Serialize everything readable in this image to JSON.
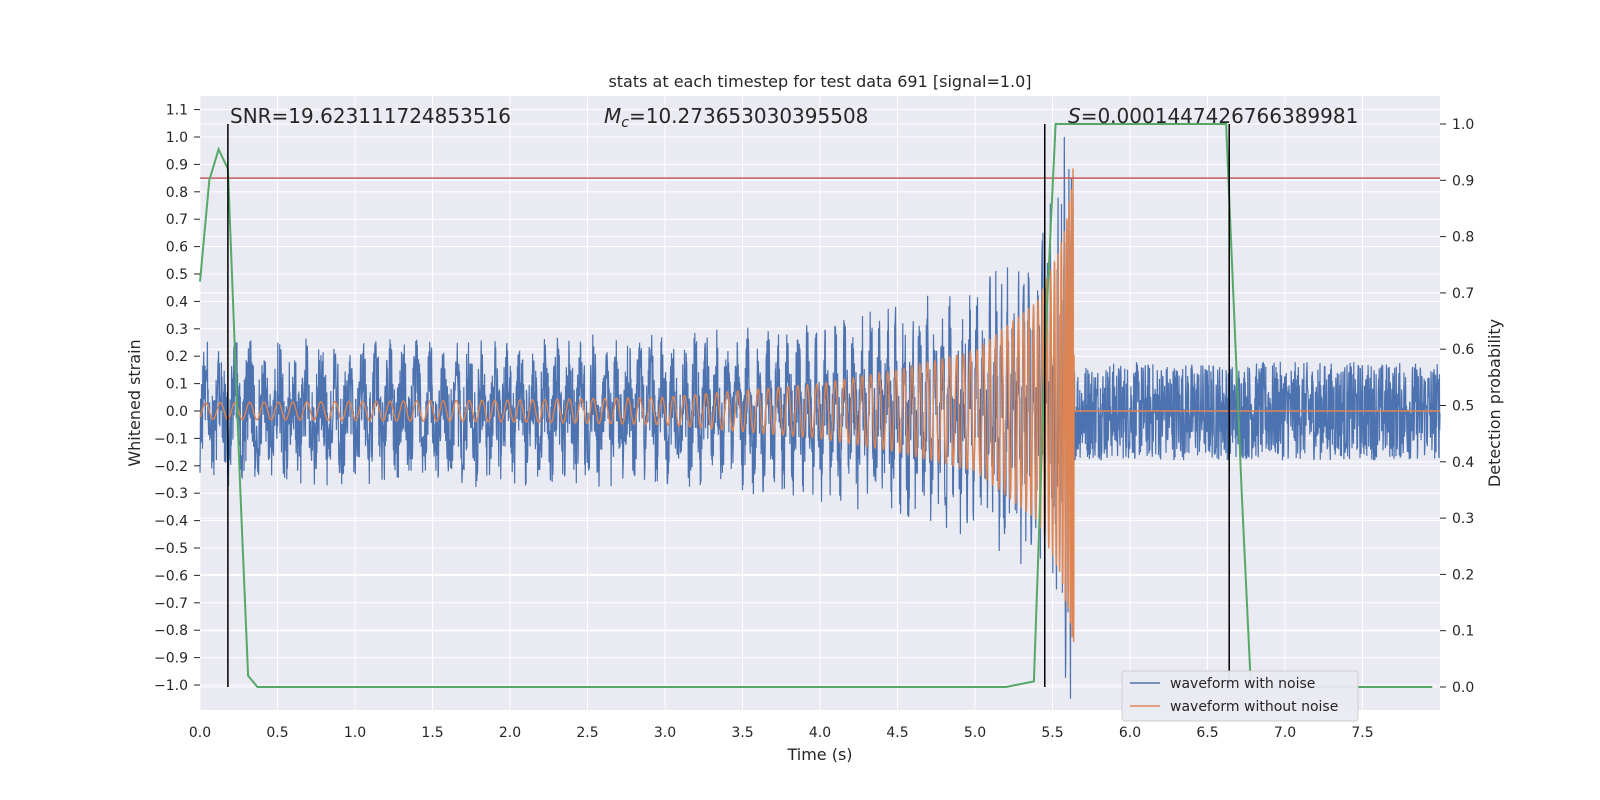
{
  "chart_data": {
    "type": "line",
    "title": "stats at each timestep for test data 691 [signal=1.0]",
    "xlabel": "Time (s)",
    "ylabel_left": "Whitened strain",
    "ylabel_right": "Detection probability",
    "xlim": [
      0.0,
      8.0
    ],
    "ylim_left": [
      -1.1,
      1.15
    ],
    "ylim_right": [
      -0.05,
      1.05
    ],
    "x_ticks": [
      "0.0",
      "0.5",
      "1.0",
      "1.5",
      "2.0",
      "2.5",
      "3.0",
      "3.5",
      "4.0",
      "4.5",
      "5.0",
      "5.5",
      "6.0",
      "6.5",
      "7.0",
      "7.5"
    ],
    "y_left_ticks": [
      "1.1",
      "1.0",
      "0.9",
      "0.8",
      "0.7",
      "0.6",
      "0.5",
      "0.4",
      "0.3",
      "0.2",
      "0.1",
      "0.0",
      "−0.1",
      "−0.2",
      "−0.3",
      "−0.4",
      "−0.5",
      "−0.6",
      "−0.7",
      "−0.8",
      "−0.9",
      "−1.0"
    ],
    "y_right_ticks": [
      "0.0",
      "0.1",
      "0.2",
      "0.3",
      "0.4",
      "0.5",
      "0.6",
      "0.7",
      "0.8",
      "0.9",
      "1.0"
    ],
    "grid": true,
    "legend_position": "lower-right",
    "annotations": {
      "snr": "SNR=19.623111724853516",
      "mc_symbol": "M",
      "mc_sub": "c",
      "mc_value": "=10.273653030395508",
      "s_symbol": "S",
      "s_value": "=0.00014474267663899​81"
    },
    "threshold": {
      "y": 0.85,
      "color": "#c44e52"
    },
    "vertical_markers_x": [
      0.18,
      5.45,
      6.64
    ],
    "merger_time": 5.64,
    "series": [
      {
        "name": "waveform with noise",
        "color": "#4c72b0",
        "noise_amplitude": 0.18,
        "envelope": [
          [
            0.0,
            0.2
          ],
          [
            2.0,
            0.2
          ],
          [
            3.0,
            0.22
          ],
          [
            4.0,
            0.27
          ],
          [
            4.5,
            0.32
          ],
          [
            5.0,
            0.38
          ],
          [
            5.4,
            0.5
          ],
          [
            5.6,
            0.9
          ],
          [
            5.64,
            0.95
          ],
          [
            5.65,
            0.19
          ],
          [
            8.0,
            0.19
          ]
        ]
      },
      {
        "name": "waveform without noise",
        "color": "#dd8452",
        "envelope": [
          [
            0.0,
            0.03
          ],
          [
            2.0,
            0.04
          ],
          [
            3.0,
            0.05
          ],
          [
            4.0,
            0.1
          ],
          [
            4.5,
            0.15
          ],
          [
            5.0,
            0.22
          ],
          [
            5.4,
            0.4
          ],
          [
            5.55,
            0.6
          ],
          [
            5.62,
            0.8
          ],
          [
            5.64,
            0.95
          ],
          [
            5.645,
            0.0
          ],
          [
            8.0,
            0.0
          ]
        ]
      },
      {
        "name": "detection probability",
        "color": "#55a868",
        "points": [
          [
            0.0,
            0.72
          ],
          [
            0.06,
            0.9
          ],
          [
            0.12,
            0.955
          ],
          [
            0.18,
            0.92
          ],
          [
            0.26,
            0.35
          ],
          [
            0.31,
            0.02
          ],
          [
            0.37,
            0.0
          ],
          [
            5.2,
            0.0
          ],
          [
            5.38,
            0.01
          ],
          [
            5.46,
            0.65
          ],
          [
            5.52,
            1.0
          ],
          [
            6.62,
            1.0
          ],
          [
            6.72,
            0.35
          ],
          [
            6.78,
            0.0
          ],
          [
            7.95,
            0.0
          ]
        ]
      }
    ]
  }
}
